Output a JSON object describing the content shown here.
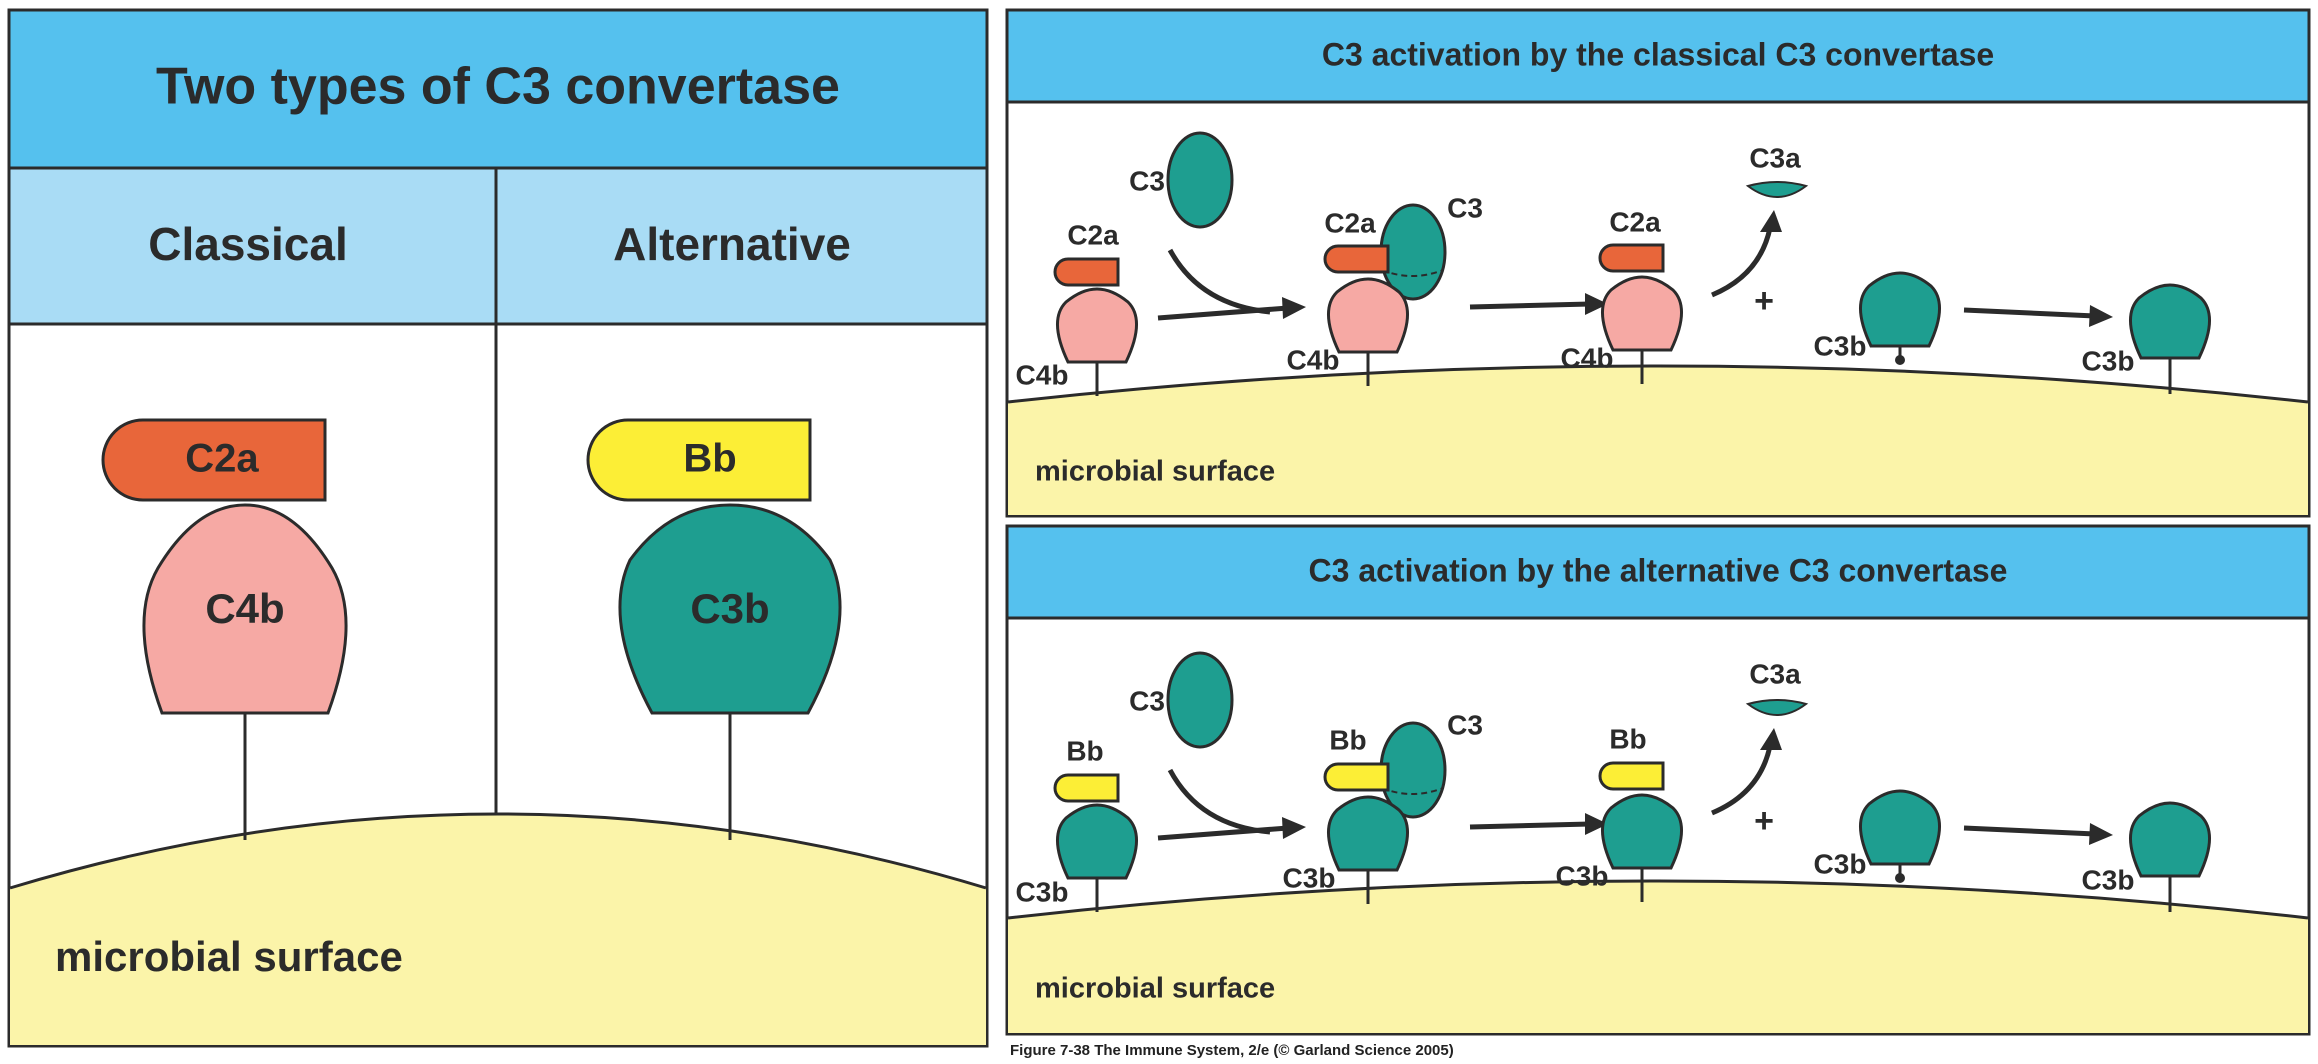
{
  "colors": {
    "header_blue": "#55c1ee",
    "subheader_blue": "#a9dcf5",
    "surface_yellow": "#fbf4a9",
    "c2a_orange": "#e8663a",
    "c4b_pink": "#f6a9a4",
    "c3_teal": "#1e9e90",
    "bb_yellow": "#fcee36",
    "line": "#2b2b2b"
  },
  "left_panel": {
    "title": "Two types of C3 convertase",
    "col_classical": "Classical",
    "col_alternative": "Alternative",
    "c2a": "C2a",
    "c4b": "C4b",
    "bb": "Bb",
    "c3b": "C3b",
    "surface": "microbial surface"
  },
  "top_panel": {
    "title": "C3 activation by the classical C3 convertase",
    "c3_free": "C3",
    "c2a_1": "C2a",
    "c4b_1": "C4b",
    "c2a_2": "C2a",
    "c3_bound": "C3",
    "c4b_2": "C4b",
    "c2a_3": "C2a",
    "c4b_3": "C4b",
    "c3a": "C3a",
    "plus": "+",
    "c3b_reactive": "C3b",
    "c3b_bound": "C3b",
    "surface": "microbial surface"
  },
  "bottom_panel": {
    "title": "C3 activation by the alternative C3 convertase",
    "c3_free": "C3",
    "bb_1": "Bb",
    "c3b_1": "C3b",
    "bb_2": "Bb",
    "c3_bound": "C3",
    "c3b_2": "C3b",
    "bb_3": "Bb",
    "c3b_3": "C3b",
    "c3a": "C3a",
    "plus": "+",
    "c3b_reactive": "C3b",
    "c3b_bound": "C3b",
    "surface": "microbial surface"
  },
  "captions": {
    "right": "Figure 7-38  The Immune System, 2/e (© Garland Science 2005)"
  }
}
